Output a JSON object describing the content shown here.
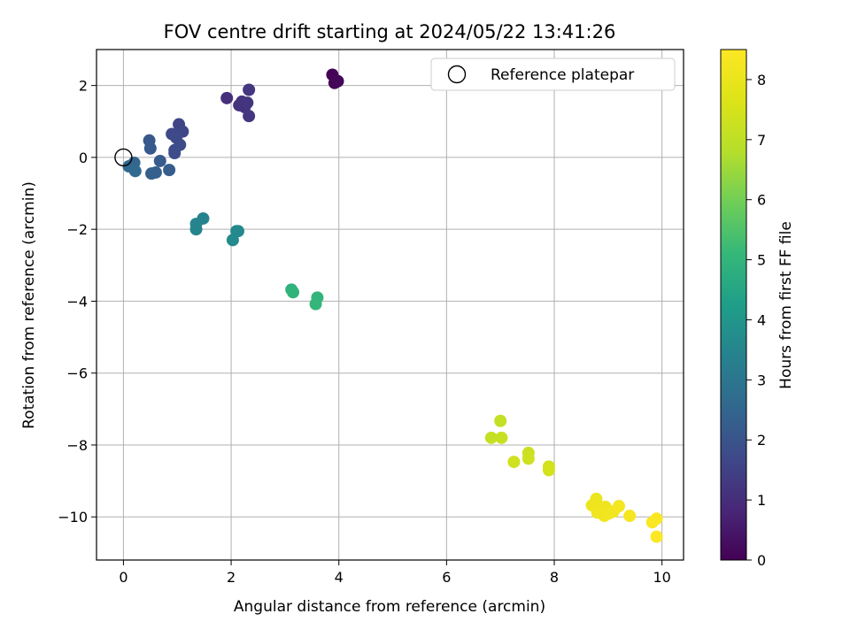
{
  "chart_data": {
    "type": "scatter",
    "title": "FOV centre drift starting at 2024/05/22 13:41:26",
    "xlabel": "Angular distance from reference (arcmin)",
    "ylabel": "Rotation from reference (arcmin)",
    "xlim": [
      -0.5,
      10.4
    ],
    "ylim": [
      -11.2,
      3.0
    ],
    "x_ticks": [
      0,
      2,
      4,
      6,
      8,
      10
    ],
    "y_ticks": [
      2,
      0,
      -2,
      -4,
      -6,
      -8,
      -10
    ],
    "grid": true,
    "legend": {
      "position": "upper-right",
      "entries": [
        "Reference platepar"
      ]
    },
    "reference_point": {
      "x": 0,
      "y": 0
    },
    "colorbar": {
      "label": "Hours from first FF file",
      "range": [
        0,
        8.5
      ],
      "ticks": [
        0,
        1,
        2,
        3,
        4,
        5,
        6,
        7,
        8
      ],
      "colormap": "viridis"
    },
    "points": [
      {
        "x": 3.88,
        "y": 2.3,
        "t": 0.05
      },
      {
        "x": 3.92,
        "y": 2.07,
        "t": 0.08
      },
      {
        "x": 3.98,
        "y": 2.12,
        "t": 0.1
      },
      {
        "x": 1.92,
        "y": 1.65,
        "t": 1.05
      },
      {
        "x": 2.15,
        "y": 1.45,
        "t": 1.1
      },
      {
        "x": 2.2,
        "y": 1.55,
        "t": 1.12
      },
      {
        "x": 2.25,
        "y": 1.4,
        "t": 1.15
      },
      {
        "x": 2.3,
        "y": 1.52,
        "t": 1.18
      },
      {
        "x": 2.33,
        "y": 1.88,
        "t": 1.2
      },
      {
        "x": 2.33,
        "y": 1.15,
        "t": 1.22
      },
      {
        "x": 1.03,
        "y": 0.92,
        "t": 1.6
      },
      {
        "x": 1.1,
        "y": 0.72,
        "t": 1.65
      },
      {
        "x": 0.9,
        "y": 0.65,
        "t": 1.7
      },
      {
        "x": 0.98,
        "y": 0.55,
        "t": 1.72
      },
      {
        "x": 1.05,
        "y": 0.35,
        "t": 1.75
      },
      {
        "x": 0.95,
        "y": 0.2,
        "t": 1.8
      },
      {
        "x": 0.95,
        "y": 0.12,
        "t": 1.82
      },
      {
        "x": 0.48,
        "y": 0.47,
        "t": 2.1
      },
      {
        "x": 0.5,
        "y": 0.25,
        "t": 2.15
      },
      {
        "x": 0.68,
        "y": -0.1,
        "t": 2.2
      },
      {
        "x": 0.85,
        "y": -0.35,
        "t": 2.25
      },
      {
        "x": 0.6,
        "y": -0.42,
        "t": 2.3
      },
      {
        "x": 0.52,
        "y": -0.45,
        "t": 2.32
      },
      {
        "x": 0.2,
        "y": -0.15,
        "t": 2.5
      },
      {
        "x": 0.1,
        "y": -0.25,
        "t": 2.55
      },
      {
        "x": 0.22,
        "y": -0.38,
        "t": 2.6
      },
      {
        "x": 1.48,
        "y": -1.7,
        "t": 3.4
      },
      {
        "x": 1.35,
        "y": -1.85,
        "t": 3.45
      },
      {
        "x": 1.35,
        "y": -2.0,
        "t": 3.5
      },
      {
        "x": 2.1,
        "y": -2.05,
        "t": 3.6
      },
      {
        "x": 2.13,
        "y": -2.05,
        "t": 3.62
      },
      {
        "x": 2.03,
        "y": -2.3,
        "t": 3.65
      },
      {
        "x": 3.12,
        "y": -3.68,
        "t": 4.9
      },
      {
        "x": 3.15,
        "y": -3.75,
        "t": 4.95
      },
      {
        "x": 3.6,
        "y": -3.9,
        "t": 5.0
      },
      {
        "x": 3.57,
        "y": -4.08,
        "t": 5.05
      },
      {
        "x": 7.0,
        "y": -7.33,
        "t": 7.1
      },
      {
        "x": 6.83,
        "y": -7.8,
        "t": 7.15
      },
      {
        "x": 7.02,
        "y": -7.8,
        "t": 7.2
      },
      {
        "x": 7.52,
        "y": -8.22,
        "t": 7.25
      },
      {
        "x": 7.52,
        "y": -8.38,
        "t": 7.3
      },
      {
        "x": 7.25,
        "y": -8.47,
        "t": 7.35
      },
      {
        "x": 7.9,
        "y": -8.6,
        "t": 7.4
      },
      {
        "x": 7.9,
        "y": -8.7,
        "t": 7.45
      },
      {
        "x": 8.78,
        "y": -9.5,
        "t": 8.0
      },
      {
        "x": 8.7,
        "y": -9.68,
        "t": 8.05
      },
      {
        "x": 8.85,
        "y": -9.75,
        "t": 8.1
      },
      {
        "x": 8.95,
        "y": -9.72,
        "t": 8.12
      },
      {
        "x": 8.8,
        "y": -9.88,
        "t": 8.15
      },
      {
        "x": 8.93,
        "y": -9.97,
        "t": 8.18
      },
      {
        "x": 9.02,
        "y": -9.9,
        "t": 8.2
      },
      {
        "x": 9.1,
        "y": -9.85,
        "t": 8.22
      },
      {
        "x": 9.2,
        "y": -9.7,
        "t": 8.25
      },
      {
        "x": 9.4,
        "y": -9.97,
        "t": 8.3
      },
      {
        "x": 9.82,
        "y": -10.15,
        "t": 8.4
      },
      {
        "x": 9.9,
        "y": -10.05,
        "t": 8.42
      },
      {
        "x": 9.9,
        "y": -10.55,
        "t": 8.45
      }
    ]
  }
}
